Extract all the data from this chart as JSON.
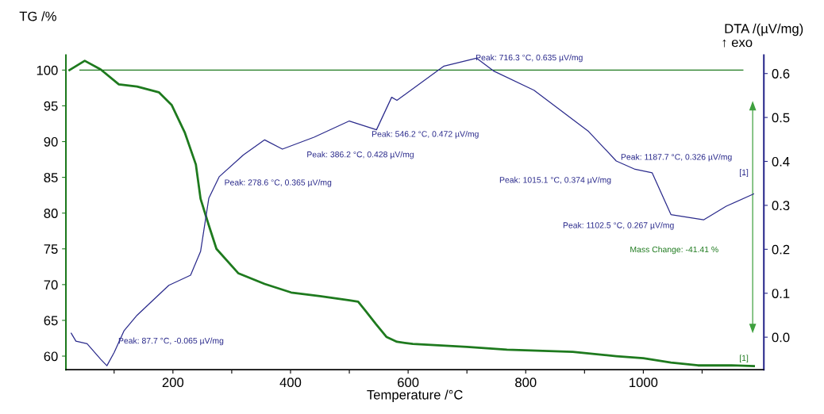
{
  "chart_data": {
    "type": "line",
    "xlabel": "Temperature /°C",
    "ylabel": "TG /%",
    "y2label": "DTA /(µV/mg)",
    "xlim": [
      18,
      1205
    ],
    "ylim": [
      58.1,
      102.1
    ],
    "y2lim": [
      -0.074,
      0.642
    ],
    "xticks": [
      {
        "value": 100,
        "label": null
      },
      200,
      {
        "value": 300,
        "label": null
      },
      400,
      {
        "value": 500,
        "label": null
      },
      600,
      {
        "value": 700,
        "label": null
      },
      800,
      {
        "value": 900,
        "label": null
      },
      1000,
      {
        "value": 1100,
        "label": null
      }
    ],
    "yticks": [
      60,
      65,
      70,
      75,
      80,
      85,
      90,
      95,
      100
    ],
    "y2ticks": [
      {
        "value": 0,
        "label": "0.0"
      },
      0.1,
      0.2,
      0.3,
      0.4,
      0.5,
      0.6
    ],
    "grid": false,
    "marker": "none",
    "line_style": "solid",
    "series": [
      {
        "color": "#1e7a1e",
        "x": [
          24,
          50,
          77,
          108,
          139,
          176,
          198,
          220,
          239,
          247,
          261,
          274,
          311,
          356,
          401,
          450,
          500,
          515,
          527,
          545,
          563,
          581,
          608,
          700,
          768,
          880,
          954,
          1000,
          1047,
          1093,
          1150,
          1188
        ],
        "values": [
          100,
          101.3,
          100.1,
          98,
          97.7,
          96.9,
          95.1,
          91.3,
          86.8,
          82,
          78.3,
          75,
          71.6,
          70.1,
          68.9,
          68.4,
          67.8,
          67.6,
          66.4,
          64.5,
          62.7,
          62.0,
          61.7,
          61.3,
          60.9,
          60.6,
          60.0,
          59.7,
          59.1,
          58.7,
          58.7,
          58.6
        ]
      },
      {
        "color": "#2b2b8c",
        "axis": "y2",
        "x": [
          27,
          35,
          54,
          77,
          87.7,
          100,
          117,
          139,
          193,
          230,
          247,
          261,
          278.6,
          320,
          356,
          386.2,
          440,
          500,
          546.2,
          572,
          581,
          661,
          716.3,
          745,
          814,
          907,
          954,
          986,
          1015.1,
          1047,
          1102.5,
          1141,
          1187.7
        ],
        "values": [
          0.009,
          -0.009,
          -0.015,
          -0.05,
          -0.065,
          -0.035,
          0.015,
          0.05,
          0.118,
          0.141,
          0.195,
          0.316,
          0.365,
          0.415,
          0.449,
          0.428,
          0.455,
          0.492,
          0.472,
          0.546,
          0.539,
          0.617,
          0.635,
          0.606,
          0.562,
          0.468,
          0.401,
          0.382,
          0.374,
          0.279,
          0.267,
          0.298,
          0.326
        ]
      }
    ],
    "ref_lines": [
      {
        "axis": "y",
        "value": 100,
        "color": "#1e7a1e"
      }
    ],
    "annotations": [
      "Peak: 87.7 °C, -0.065 µV/mg",
      "Peak: 278.6 °C, 0.365 µV/mg",
      "Peak: 386.2 °C, 0.428 µV/mg",
      "Peak: 546.2 °C, 0.472 µV/mg",
      "Peak: 716.3 °C, 0.635 µV/mg",
      "Peak: 1015.1 °C, 0.374 µV/mg",
      "Peak: 1102.5 °C, 0.267 µV/mg",
      "Peak: 1187.7 °C, 0.326 µV/mg",
      "[1]",
      "[1]",
      "Mass Change: -41.41 %",
      "↑ exo"
    ]
  }
}
